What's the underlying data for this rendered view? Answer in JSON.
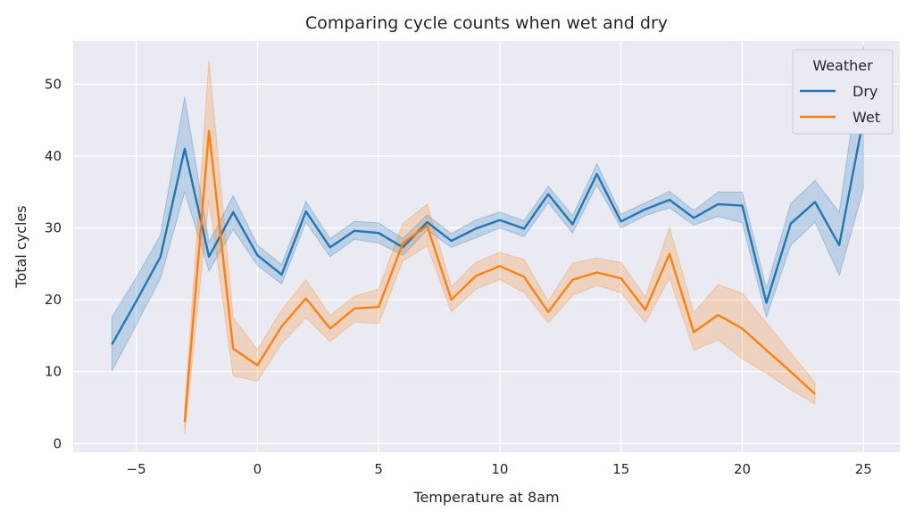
{
  "chart_data": {
    "type": "line",
    "title": "Comparing cycle counts when wet and dry",
    "xlabel": "Temperature at 8am",
    "ylabel": "Total cycles",
    "xlim": [
      -7.6,
      26.5
    ],
    "ylim": [
      -1.2,
      56.0
    ],
    "xticks": [
      -5,
      0,
      5,
      10,
      15,
      20,
      25
    ],
    "xtick_labels": [
      "−5",
      "0",
      "5",
      "10",
      "15",
      "20",
      "25"
    ],
    "yticks": [
      0,
      10,
      20,
      30,
      40,
      50
    ],
    "ytick_labels": [
      "0",
      "10",
      "20",
      "30",
      "40",
      "50"
    ],
    "grid": true,
    "legend": {
      "title": "Weather",
      "position": "top-right"
    },
    "series": [
      {
        "name": "Dry",
        "color": "#1f77b4",
        "x": [
          -6,
          -5,
          -4,
          -3,
          -2,
          -1,
          0,
          1,
          2,
          3,
          4,
          5,
          6,
          7,
          8,
          9,
          10,
          11,
          12,
          13,
          14,
          15,
          16,
          17,
          18,
          19,
          20,
          21,
          22,
          23,
          24,
          25
        ],
        "y": [
          13.8,
          19.8,
          26.0,
          41.0,
          26.0,
          32.2,
          26.2,
          23.5,
          32.3,
          27.3,
          29.6,
          29.3,
          27.3,
          30.8,
          28.2,
          29.9,
          31.1,
          29.9,
          34.7,
          30.5,
          37.5,
          30.9,
          32.6,
          33.9,
          31.4,
          33.3,
          33.1,
          19.6,
          30.6,
          33.6,
          27.6,
          45.3
        ],
        "lower": [
          10.1,
          16.5,
          23.0,
          35.0,
          24.0,
          29.8,
          24.8,
          22.2,
          30.8,
          26.0,
          28.4,
          27.9,
          26.2,
          29.7,
          27.3,
          28.6,
          30.0,
          28.8,
          33.5,
          29.3,
          36.0,
          30.0,
          31.7,
          32.8,
          30.4,
          31.6,
          30.7,
          17.6,
          27.6,
          30.8,
          23.4,
          35.4
        ],
        "upper": [
          17.6,
          23.1,
          29.0,
          48.2,
          28.0,
          34.5,
          27.6,
          24.9,
          33.7,
          28.5,
          30.9,
          30.7,
          28.5,
          31.8,
          29.2,
          31.1,
          32.2,
          31.0,
          35.8,
          31.7,
          38.9,
          31.9,
          33.5,
          35.1,
          32.4,
          35.0,
          35.0,
          21.6,
          33.4,
          36.6,
          32.2,
          55.4
        ]
      },
      {
        "name": "Wet",
        "color": "#ff7f0e",
        "x": [
          -3,
          -2,
          -1,
          0,
          1,
          2,
          3,
          4,
          5,
          6,
          7,
          8,
          9,
          10,
          11,
          12,
          13,
          14,
          15,
          16,
          17,
          18,
          19,
          20,
          21,
          22,
          23
        ],
        "y": [
          3.0,
          43.5,
          13.2,
          10.9,
          16.3,
          20.2,
          16.0,
          18.8,
          19.0,
          27.9,
          30.3,
          20.0,
          23.3,
          24.7,
          23.2,
          18.3,
          22.8,
          23.8,
          23.0,
          18.6,
          26.4,
          15.5,
          17.9,
          16.0,
          13.0,
          10.0,
          6.9
        ],
        "lower": [
          1.3,
          34.0,
          9.4,
          8.7,
          13.9,
          17.5,
          14.2,
          16.9,
          16.7,
          25.4,
          27.5,
          18.3,
          21.5,
          22.8,
          21.0,
          16.8,
          20.6,
          22.0,
          21.0,
          16.8,
          23.0,
          13.0,
          14.4,
          11.8,
          9.8,
          7.5,
          5.5
        ],
        "upper": [
          4.7,
          53.3,
          17.5,
          13.1,
          18.6,
          22.8,
          17.8,
          20.5,
          21.5,
          30.6,
          33.3,
          21.8,
          25.2,
          26.6,
          25.6,
          19.8,
          25.1,
          25.8,
          25.2,
          20.4,
          30.0,
          18.2,
          22.1,
          20.9,
          16.8,
          12.6,
          8.5
        ]
      }
    ]
  }
}
